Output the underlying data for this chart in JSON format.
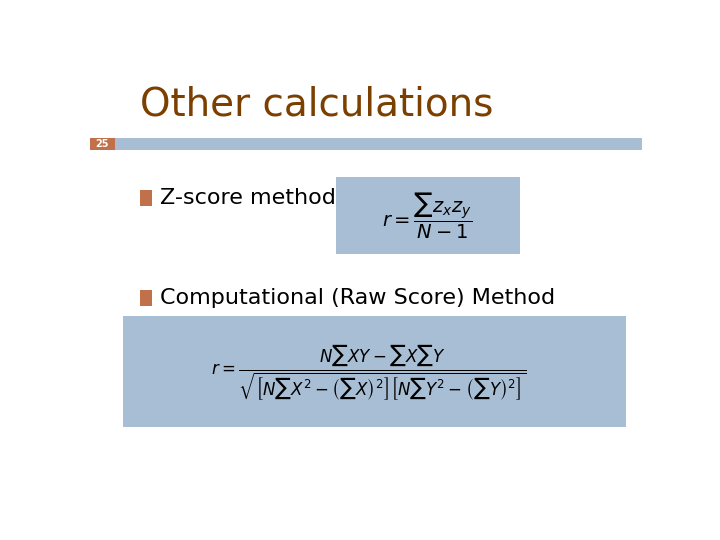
{
  "title": "Other calculations",
  "title_color": "#7B3F00",
  "title_fontsize": 28,
  "slide_number": "25",
  "slide_number_bg": "#C0714A",
  "slide_number_color": "white",
  "header_bar_color": "#A8BED4",
  "background_color": "#FFFFFF",
  "bullet_color": "#C0714A",
  "text_color": "#000000",
  "formula_bg_color": "#A8BED4",
  "zscore_label": "Z-score method",
  "comp_label": "Computational (Raw Score) Method",
  "zscore_formula": "$r = \\dfrac{\\sum z_x z_y}{N-1}$",
  "comp_formula": "$r = \\dfrac{N\\sum XY - \\sum X \\sum Y}{\\sqrt{\\left[N\\sum X^2 - \\left(\\sum X\\right)^2\\right]\\left[N\\sum Y^2 - \\left(\\sum Y\\right)^2\\right]}}$"
}
